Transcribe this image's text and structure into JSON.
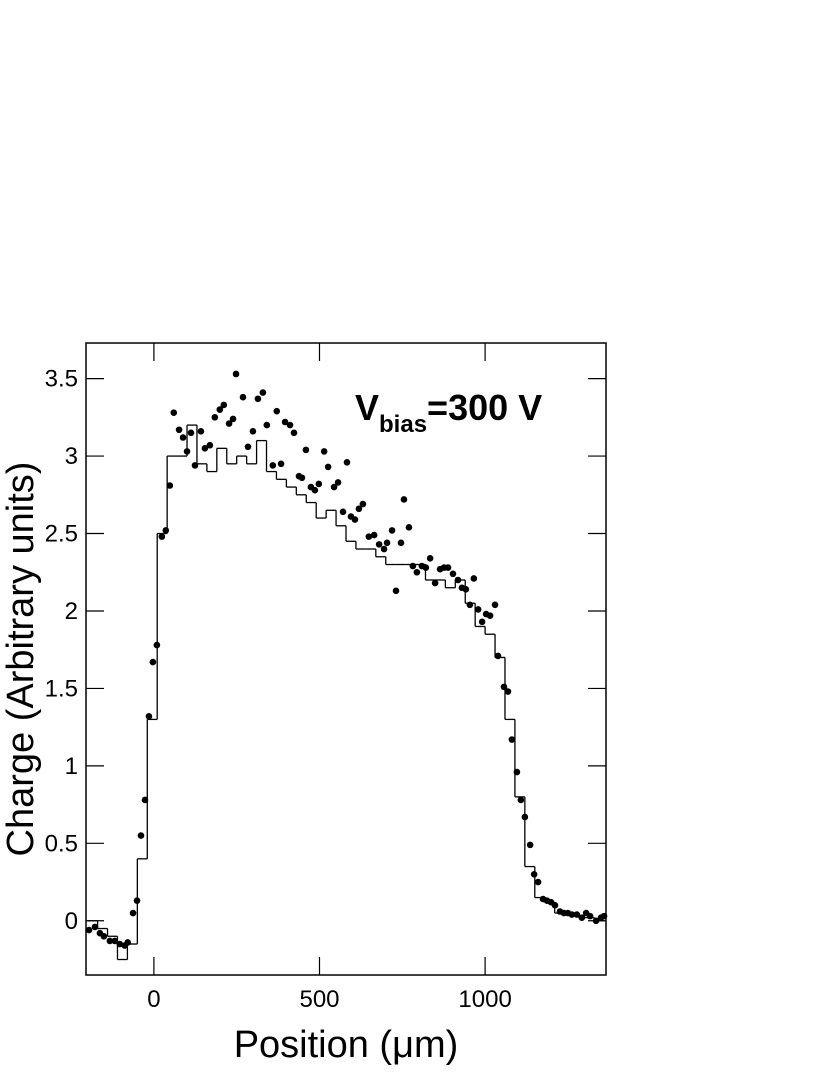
{
  "chart_data": {
    "type": "scatter",
    "xlabel": "Position (μm)",
    "ylabel": "Charge (Arbitrary units)",
    "annotation": {
      "main": "V",
      "sub": "bias",
      "rest": "=300 V"
    },
    "xlim": [
      -205,
      1365
    ],
    "ylim": [
      -0.35,
      3.73
    ],
    "xticks": [
      0,
      500,
      1000
    ],
    "yticks": [
      0,
      0.5,
      1,
      1.5,
      2,
      2.5,
      3,
      3.5
    ],
    "points": {
      "color": "#000000",
      "x": [
        -196,
        -178,
        -163,
        -151,
        -133,
        -118,
        -103,
        -88,
        -79,
        -63,
        -51,
        -39,
        -27,
        -15,
        -3,
        9,
        24,
        36,
        48,
        60,
        76,
        88,
        100,
        112,
        124,
        142,
        154,
        169,
        184,
        199,
        211,
        227,
        239,
        248,
        269,
        284,
        299,
        314,
        329,
        341,
        359,
        371,
        384,
        396,
        411,
        423,
        438,
        447,
        459,
        474,
        486,
        498,
        514,
        526,
        544,
        556,
        571,
        583,
        595,
        607,
        619,
        631,
        649,
        665,
        680,
        695,
        704,
        719,
        731,
        746,
        755,
        770,
        782,
        794,
        809,
        821,
        834,
        849,
        864,
        876,
        888,
        903,
        918,
        930,
        942,
        954,
        966,
        979,
        991,
        1003,
        1015,
        1030,
        1039,
        1057,
        1069,
        1081,
        1096,
        1108,
        1120,
        1136,
        1148,
        1160,
        1175,
        1187,
        1199,
        1211,
        1226,
        1238,
        1250,
        1262,
        1277,
        1292,
        1305,
        1317,
        1335,
        1350,
        1359
      ],
      "y": [
        -0.06,
        -0.04,
        -0.08,
        -0.1,
        -0.13,
        -0.13,
        -0.15,
        -0.16,
        -0.14,
        0.05,
        0.13,
        0.55,
        0.78,
        1.32,
        1.67,
        1.78,
        2.48,
        2.52,
        2.81,
        3.28,
        3.17,
        3.12,
        3.03,
        3.15,
        2.94,
        3.16,
        3.05,
        3.07,
        3.25,
        3.3,
        3.33,
        3.21,
        3.24,
        3.53,
        3.38,
        3.06,
        3.16,
        3.37,
        3.41,
        3.2,
        2.94,
        3.29,
        2.95,
        3.22,
        3.2,
        3.15,
        2.87,
        2.86,
        3.04,
        2.8,
        2.78,
        2.82,
        3.03,
        2.93,
        2.8,
        2.83,
        2.64,
        2.96,
        2.61,
        2.59,
        2.66,
        2.69,
        2.48,
        2.49,
        2.43,
        2.4,
        2.44,
        2.52,
        2.13,
        2.44,
        2.72,
        2.54,
        2.29,
        2.25,
        2.29,
        2.28,
        2.34,
        2.18,
        2.27,
        2.28,
        2.28,
        2.24,
        2.2,
        2.15,
        2.14,
        2.04,
        2.21,
        2.01,
        1.93,
        1.98,
        1.97,
        2.04,
        1.71,
        1.51,
        1.48,
        1.17,
        0.96,
        0.78,
        0.67,
        0.49,
        0.3,
        0.25,
        0.14,
        0.13,
        0.12,
        0.1,
        0.06,
        0.05,
        0.05,
        0.04,
        0.04,
        0.02,
        0.05,
        0.03,
        0.0,
        0.02,
        0.03
      ]
    },
    "histogram": {
      "color": "#000000",
      "bins": [
        -200,
        -170,
        -140,
        -110,
        -80,
        -50,
        -20,
        10,
        40,
        70,
        100,
        130,
        160,
        190,
        220,
        250,
        280,
        310,
        340,
        370,
        400,
        430,
        460,
        490,
        520,
        550,
        580,
        610,
        640,
        670,
        700,
        730,
        760,
        790,
        820,
        850,
        880,
        910,
        940,
        970,
        1000,
        1030,
        1060,
        1090,
        1120,
        1150,
        1180,
        1210,
        1240,
        1270,
        1300,
        1330,
        1360
      ],
      "values": [
        0.0,
        -0.05,
        -0.1,
        -0.25,
        -0.15,
        0.4,
        1.3,
        2.5,
        3.0,
        3.0,
        3.2,
        2.95,
        2.9,
        3.05,
        2.95,
        3.0,
        2.95,
        3.1,
        2.9,
        2.85,
        2.8,
        2.75,
        2.7,
        2.6,
        2.65,
        2.55,
        2.45,
        2.4,
        2.4,
        2.35,
        2.3,
        2.3,
        2.3,
        2.3,
        2.2,
        2.2,
        2.15,
        2.2,
        2.05,
        1.9,
        1.85,
        1.7,
        1.3,
        0.8,
        0.35,
        0.15,
        0.12,
        0.05,
        0.05,
        0.03,
        0.02,
        0.0
      ]
    }
  }
}
